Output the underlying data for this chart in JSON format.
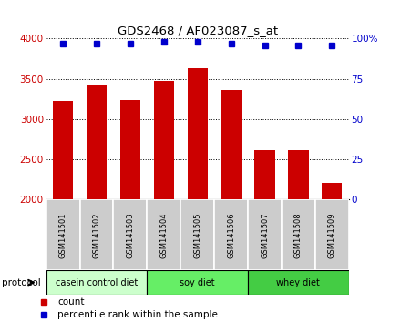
{
  "title": "GDS2468 / AF023087_s_at",
  "samples": [
    "GSM141501",
    "GSM141502",
    "GSM141503",
    "GSM141504",
    "GSM141505",
    "GSM141506",
    "GSM141507",
    "GSM141508",
    "GSM141509"
  ],
  "counts": [
    3230,
    3430,
    3240,
    3480,
    3630,
    3360,
    2610,
    2610,
    2210
  ],
  "percentile_ranks": [
    97,
    97,
    97,
    98,
    98,
    97,
    96,
    96,
    96
  ],
  "ylim_left": [
    2000,
    4000
  ],
  "ylim_right": [
    0,
    100
  ],
  "yticks_left": [
    2000,
    2500,
    3000,
    3500,
    4000
  ],
  "yticks_right": [
    0,
    25,
    50,
    75,
    100
  ],
  "bar_color": "#cc0000",
  "dot_color": "#0000cc",
  "groups": [
    {
      "label": "casein control diet",
      "start": 0,
      "end": 3,
      "color": "#ccffcc"
    },
    {
      "label": "soy diet",
      "start": 3,
      "end": 6,
      "color": "#66ee66"
    },
    {
      "label": "whey diet",
      "start": 6,
      "end": 9,
      "color": "#44cc44"
    }
  ],
  "protocol_label": "protocol",
  "legend_count_label": "count",
  "legend_pct_label": "percentile rank within the sample",
  "bar_width": 0.6,
  "tick_label_bg": "#cccccc"
}
